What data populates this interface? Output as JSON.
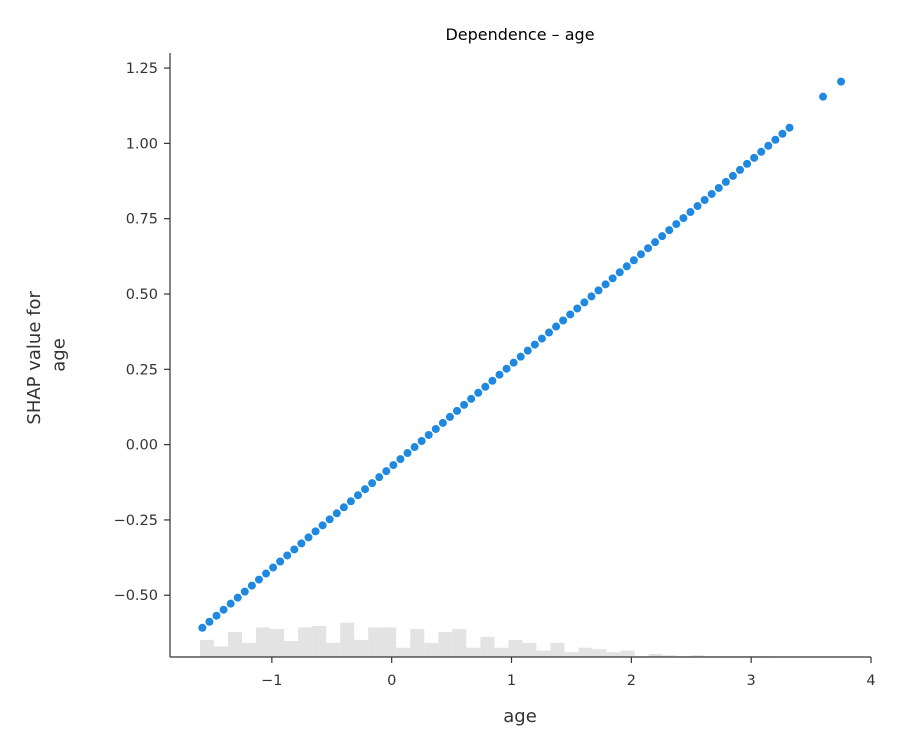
{
  "chart_data": {
    "type": "scatter",
    "title": "Dependence – age",
    "xlabel": "age",
    "ylabel_lines": [
      "SHAP value for",
      "age"
    ],
    "xlim": [
      -1.85,
      4.0
    ],
    "ylim": [
      -0.705,
      1.3
    ],
    "x_ticks": [
      -1,
      0,
      1,
      2,
      3,
      4
    ],
    "x_tick_labels": [
      "−1",
      "0",
      "1",
      "2",
      "3",
      "4"
    ],
    "y_ticks": [
      -0.5,
      -0.25,
      0.0,
      0.25,
      0.5,
      0.75,
      1.0,
      1.25
    ],
    "y_tick_labels": [
      "−0.50",
      "−0.25",
      "0.00",
      "0.25",
      "0.50",
      "0.75",
      "1.00",
      "1.25"
    ],
    "grid": false,
    "legend": "none",
    "point_color": "#1f88e0",
    "histogram_color": "#e3e3e3",
    "series": [
      {
        "line_start": [
          -1.58,
          -0.608
        ],
        "line_end": [
          3.32,
          1.052
        ],
        "point_count": 84,
        "outliers": [
          [
            3.6,
            1.155
          ],
          [
            3.75,
            1.205
          ]
        ]
      }
    ],
    "histogram": {
      "bin_start": -1.6,
      "bin_width": 0.117,
      "heights": [
        0.057,
        0.035,
        0.083,
        0.047,
        0.098,
        0.093,
        0.053,
        0.098,
        0.103,
        0.047,
        0.114,
        0.057,
        0.098,
        0.098,
        0.031,
        0.093,
        0.047,
        0.083,
        0.093,
        0.031,
        0.067,
        0.031,
        0.057,
        0.047,
        0.021,
        0.047,
        0.016,
        0.031,
        0.026,
        0.016,
        0.021,
        0.003,
        0.01,
        0.006,
        0.003,
        0.006,
        0.003,
        0.003,
        0.003,
        0.003,
        0.003
      ]
    }
  }
}
